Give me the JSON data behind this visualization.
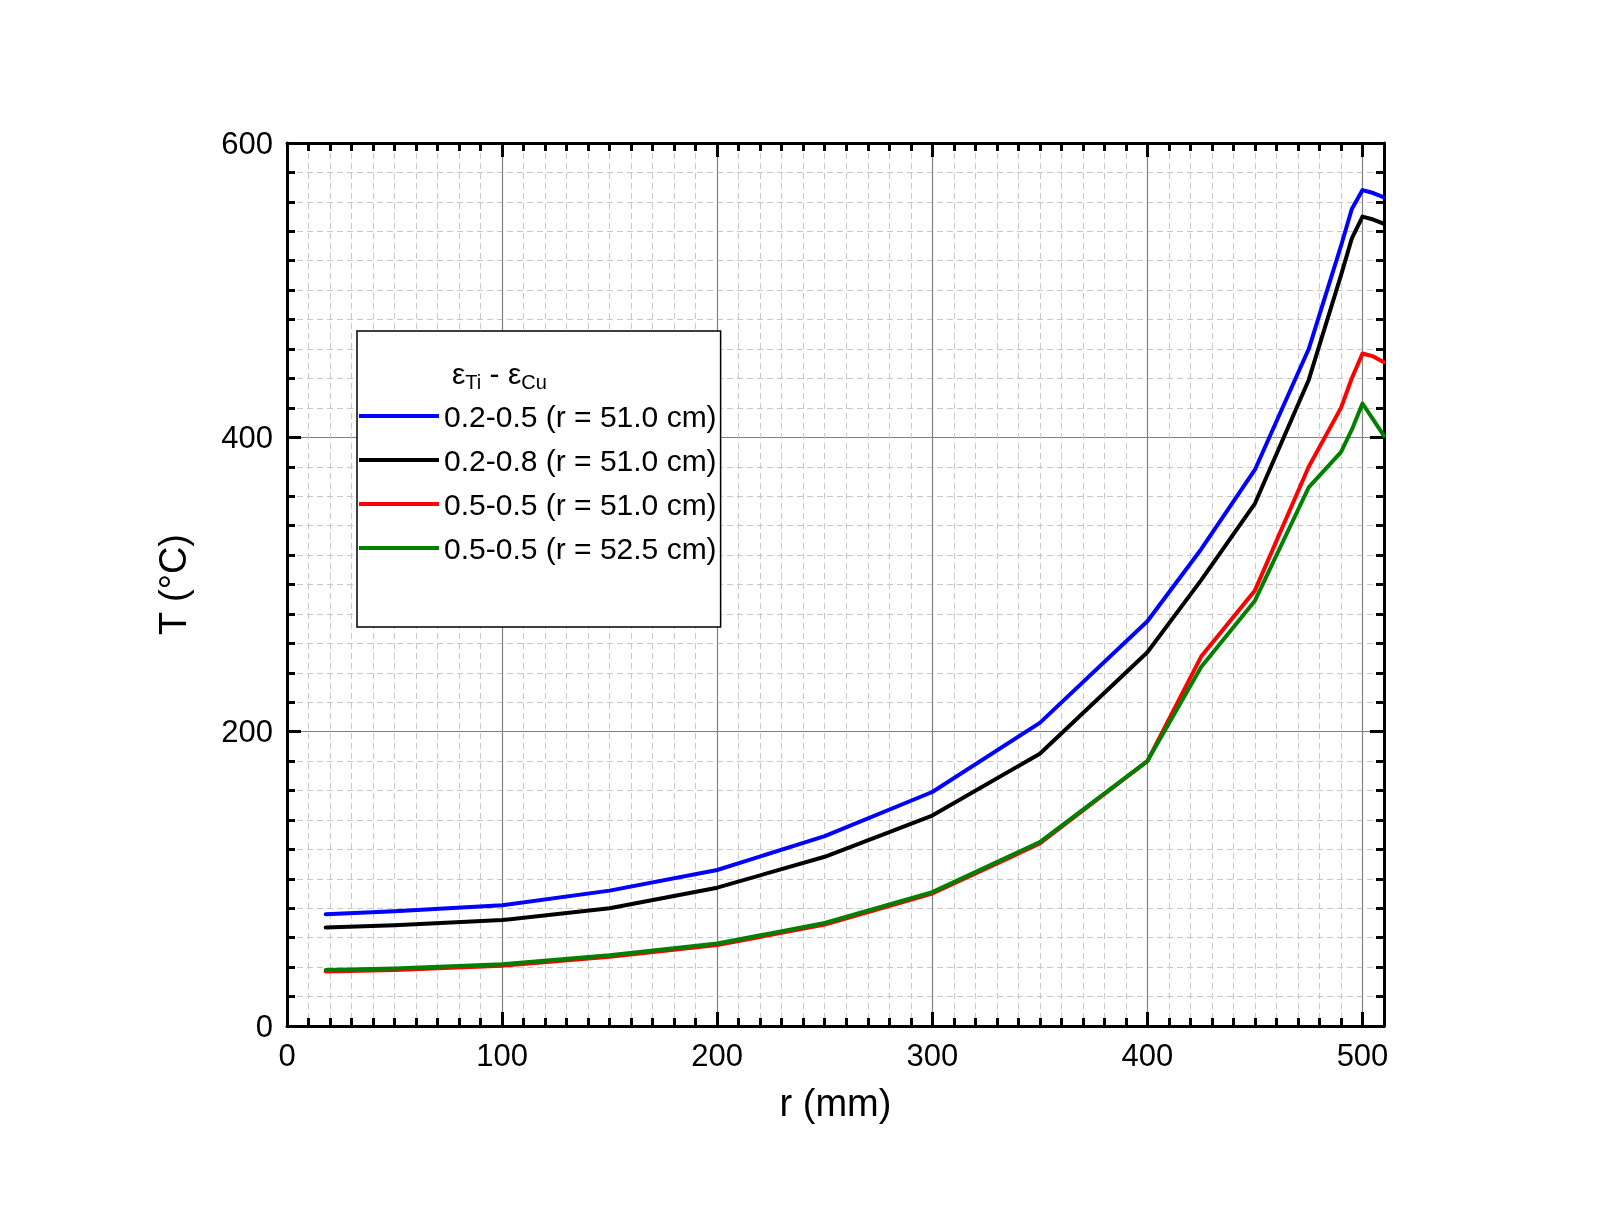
{
  "chart_data": {
    "type": "line",
    "xlabel": "r (mm)",
    "ylabel": "T (°C)",
    "legend_title": "ε$_{Ti}$ - ε$_{Cu}$",
    "x": [
      18,
      50,
      100,
      150,
      200,
      250,
      300,
      350,
      400,
      425,
      450,
      475,
      490,
      495,
      500,
      505,
      510
    ],
    "series": [
      {
        "name": "0.2-0.5 (r = 51.0 cm)",
        "color": "#0000ff",
        "values": [
          76,
          78,
          82,
          92,
          106,
          129,
          159,
          206,
          275,
          324,
          378,
          460,
          530,
          555,
          568,
          566,
          563
        ]
      },
      {
        "name": "0.2-0.8 (r = 51.0 cm)",
        "color": "#000000",
        "values": [
          67,
          68.5,
          72,
          80,
          94,
          115,
          143,
          185,
          254,
          303,
          355,
          439,
          510,
          535,
          550,
          548,
          545
        ]
      },
      {
        "name": "0.5-0.5 (r = 51.0 cm)",
        "color": "#ff0000",
        "values": [
          37,
          38,
          41,
          47,
          55,
          69,
          90,
          124,
          180,
          251,
          296,
          380,
          420,
          440,
          457,
          455,
          451
        ]
      },
      {
        "name": "0.5-0.5 (r = 52.5 cm)",
        "color": "#008000",
        "values": [
          38,
          39,
          42,
          48,
          56,
          70,
          91,
          125,
          180,
          244,
          289,
          366,
          390,
          405,
          423,
          412,
          401
        ]
      }
    ],
    "xlim": [
      0,
      510
    ],
    "xticks": [
      0,
      100,
      200,
      300,
      400,
      500
    ],
    "ylim": [
      0,
      600
    ],
    "yticks": [
      0,
      200,
      400,
      600
    ],
    "grid": true,
    "legend": "top left",
    "marker": "none",
    "line_style": "solid"
  }
}
